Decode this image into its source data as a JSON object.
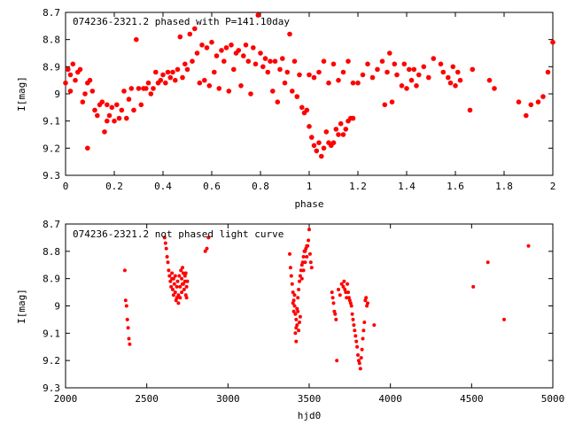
{
  "chart_data": [
    {
      "type": "scatter",
      "title": "074236-2321.2 phased with P=141.10day",
      "xlabel": "phase",
      "ylabel": "I[mag]",
      "xlim": [
        0,
        2
      ],
      "ylim": [
        8.7,
        9.3
      ],
      "y_inverted": true,
      "grid": false,
      "marker_color": "#ff0000",
      "marker": "filled-circle",
      "x_ticks": [
        "0",
        "0.2",
        "0.4",
        "0.6",
        "0.8",
        "1",
        "1.2",
        "1.4",
        "1.6",
        "1.8",
        "2"
      ],
      "y_ticks": [
        "8.7",
        "8.8",
        "8.9",
        "9",
        "9.1",
        "9.2",
        "9.3"
      ],
      "points": [
        [
          0.0,
          8.96
        ],
        [
          0.01,
          8.91
        ],
        [
          0.02,
          8.93
        ],
        [
          0.02,
          8.99
        ],
        [
          0.03,
          8.89
        ],
        [
          0.04,
          8.95
        ],
        [
          0.05,
          8.92
        ],
        [
          0.06,
          8.91
        ],
        [
          0.07,
          9.03
        ],
        [
          0.08,
          9.0
        ],
        [
          0.09,
          9.2
        ],
        [
          0.09,
          8.96
        ],
        [
          0.1,
          8.95
        ],
        [
          0.11,
          8.99
        ],
        [
          0.12,
          9.06
        ],
        [
          0.13,
          9.08
        ],
        [
          0.14,
          9.04
        ],
        [
          0.15,
          9.03
        ],
        [
          0.16,
          9.14
        ],
        [
          0.17,
          9.1
        ],
        [
          0.17,
          9.04
        ],
        [
          0.18,
          9.08
        ],
        [
          0.19,
          9.05
        ],
        [
          0.2,
          9.1
        ],
        [
          0.21,
          9.04
        ],
        [
          0.22,
          9.09
        ],
        [
          0.23,
          9.06
        ],
        [
          0.24,
          8.99
        ],
        [
          0.25,
          9.09
        ],
        [
          0.26,
          9.02
        ],
        [
          0.27,
          8.98
        ],
        [
          0.28,
          9.06
        ],
        [
          0.29,
          8.8
        ],
        [
          0.3,
          8.98
        ],
        [
          0.31,
          9.04
        ],
        [
          0.32,
          8.98
        ],
        [
          0.33,
          8.98
        ],
        [
          0.34,
          8.96
        ],
        [
          0.35,
          9.0
        ],
        [
          0.36,
          8.98
        ],
        [
          0.37,
          8.92
        ],
        [
          0.38,
          8.96
        ],
        [
          0.39,
          8.95
        ],
        [
          0.4,
          8.93
        ],
        [
          0.41,
          8.96
        ],
        [
          0.42,
          8.92
        ],
        [
          0.43,
          8.94
        ],
        [
          0.44,
          8.92
        ],
        [
          0.45,
          8.95
        ],
        [
          0.46,
          8.91
        ],
        [
          0.47,
          8.79
        ],
        [
          0.48,
          8.94
        ],
        [
          0.49,
          8.89
        ],
        [
          0.5,
          8.91
        ],
        [
          0.51,
          8.78
        ],
        [
          0.52,
          8.88
        ],
        [
          0.53,
          8.76
        ],
        [
          0.54,
          8.85
        ],
        [
          0.55,
          8.96
        ],
        [
          0.56,
          8.82
        ],
        [
          0.57,
          8.95
        ],
        [
          0.58,
          8.83
        ],
        [
          0.59,
          8.97
        ],
        [
          0.6,
          8.81
        ],
        [
          0.61,
          8.92
        ],
        [
          0.62,
          8.86
        ],
        [
          0.63,
          8.98
        ],
        [
          0.64,
          8.84
        ],
        [
          0.65,
          8.88
        ],
        [
          0.66,
          8.83
        ],
        [
          0.67,
          8.99
        ],
        [
          0.68,
          8.82
        ],
        [
          0.69,
          8.91
        ],
        [
          0.7,
          8.85
        ],
        [
          0.71,
          8.84
        ],
        [
          0.72,
          8.97
        ],
        [
          0.73,
          8.86
        ],
        [
          0.74,
          8.82
        ],
        [
          0.75,
          8.88
        ],
        [
          0.76,
          9.0
        ],
        [
          0.77,
          8.83
        ],
        [
          0.78,
          8.89
        ],
        [
          0.79,
          8.71
        ],
        [
          0.8,
          8.85
        ],
        [
          0.81,
          8.9
        ],
        [
          0.82,
          8.87
        ],
        [
          0.83,
          8.92
        ],
        [
          0.84,
          8.88
        ],
        [
          0.85,
          8.99
        ],
        [
          0.86,
          8.88
        ],
        [
          0.87,
          9.03
        ],
        [
          0.88,
          8.91
        ],
        [
          0.89,
          8.87
        ],
        [
          0.9,
          8.96
        ],
        [
          0.91,
          8.92
        ],
        [
          0.92,
          8.78
        ],
        [
          0.93,
          8.99
        ],
        [
          0.94,
          8.88
        ],
        [
          0.95,
          9.01
        ],
        [
          0.96,
          8.93
        ],
        [
          0.97,
          9.05
        ],
        [
          0.98,
          9.07
        ],
        [
          0.99,
          9.06
        ],
        [
          1.0,
          9.12
        ],
        [
          1.01,
          9.16
        ],
        [
          1.02,
          9.19
        ],
        [
          1.03,
          9.21
        ],
        [
          1.04,
          9.18
        ],
        [
          1.05,
          9.23
        ],
        [
          1.06,
          9.2
        ],
        [
          1.07,
          9.14
        ],
        [
          1.08,
          9.18
        ],
        [
          1.09,
          9.19
        ],
        [
          1.1,
          9.18
        ],
        [
          1.11,
          9.13
        ],
        [
          1.12,
          9.15
        ],
        [
          1.13,
          9.11
        ],
        [
          1.14,
          9.15
        ],
        [
          1.15,
          9.13
        ],
        [
          1.16,
          9.1
        ],
        [
          1.17,
          9.09
        ],
        [
          1.18,
          9.09
        ],
        [
          1.0,
          8.93
        ],
        [
          1.02,
          8.94
        ],
        [
          1.04,
          8.92
        ],
        [
          1.06,
          8.88
        ],
        [
          1.08,
          8.96
        ],
        [
          1.1,
          8.89
        ],
        [
          1.12,
          8.95
        ],
        [
          1.14,
          8.92
        ],
        [
          1.16,
          8.88
        ],
        [
          1.18,
          8.96
        ],
        [
          1.2,
          8.96
        ],
        [
          1.22,
          8.93
        ],
        [
          1.24,
          8.89
        ],
        [
          1.26,
          8.94
        ],
        [
          1.28,
          8.91
        ],
        [
          1.3,
          8.88
        ],
        [
          1.31,
          9.04
        ],
        [
          1.32,
          8.92
        ],
        [
          1.33,
          8.85
        ],
        [
          1.34,
          9.03
        ],
        [
          1.35,
          8.89
        ],
        [
          1.36,
          8.93
        ],
        [
          1.38,
          8.97
        ],
        [
          1.39,
          8.89
        ],
        [
          1.4,
          8.98
        ],
        [
          1.41,
          8.91
        ],
        [
          1.42,
          8.95
        ],
        [
          1.43,
          8.91
        ],
        [
          1.44,
          8.97
        ],
        [
          1.45,
          8.93
        ],
        [
          1.47,
          8.9
        ],
        [
          1.49,
          8.94
        ],
        [
          1.51,
          8.87
        ],
        [
          1.54,
          8.89
        ],
        [
          1.55,
          8.92
        ],
        [
          1.57,
          8.94
        ],
        [
          1.58,
          8.96
        ],
        [
          1.59,
          8.9
        ],
        [
          1.6,
          8.97
        ],
        [
          1.61,
          8.92
        ],
        [
          1.62,
          8.95
        ],
        [
          1.66,
          9.06
        ],
        [
          1.67,
          8.91
        ],
        [
          1.74,
          8.95
        ],
        [
          1.76,
          8.98
        ],
        [
          1.86,
          9.03
        ],
        [
          1.89,
          9.08
        ],
        [
          1.91,
          9.04
        ],
        [
          1.94,
          9.03
        ],
        [
          1.96,
          9.01
        ],
        [
          1.98,
          8.92
        ],
        [
          2.0,
          8.81
        ]
      ]
    },
    {
      "type": "scatter",
      "title": "074236-2321.2 not phased light curve",
      "xlabel": "hjd0",
      "ylabel": "I[mag]",
      "xlim": [
        2000,
        5000
      ],
      "ylim": [
        8.7,
        9.3
      ],
      "y_inverted": true,
      "grid": false,
      "marker_color": "#ff0000",
      "marker": "filled-circle",
      "x_ticks": [
        "2000",
        "2500",
        "3000",
        "3500",
        "4000",
        "4500",
        "5000"
      ],
      "y_ticks": [
        "8.7",
        "8.8",
        "8.9",
        "9",
        "9.1",
        "9.2",
        "9.3"
      ],
      "points": [
        [
          2365,
          8.87
        ],
        [
          2370,
          8.98
        ],
        [
          2375,
          9.0
        ],
        [
          2380,
          9.05
        ],
        [
          2385,
          9.08
        ],
        [
          2390,
          9.12
        ],
        [
          2395,
          9.14
        ],
        [
          2610,
          8.75
        ],
        [
          2615,
          8.77
        ],
        [
          2620,
          8.79
        ],
        [
          2625,
          8.82
        ],
        [
          2630,
          8.84
        ],
        [
          2635,
          8.87
        ],
        [
          2640,
          8.89
        ],
        [
          2645,
          8.91
        ],
        [
          2650,
          8.93
        ],
        [
          2655,
          8.9
        ],
        [
          2660,
          8.94
        ],
        [
          2665,
          8.96
        ],
        [
          2670,
          8.92
        ],
        [
          2675,
          8.95
        ],
        [
          2680,
          8.98
        ],
        [
          2685,
          8.93
        ],
        [
          2690,
          8.91
        ],
        [
          2695,
          8.96
        ],
        [
          2700,
          8.89
        ],
        [
          2705,
          8.93
        ],
        [
          2710,
          8.87
        ],
        [
          2715,
          8.9
        ],
        [
          2720,
          8.92
        ],
        [
          2725,
          8.88
        ],
        [
          2730,
          8.94
        ],
        [
          2735,
          8.91
        ],
        [
          2740,
          8.96
        ],
        [
          2745,
          8.93
        ],
        [
          2750,
          8.91
        ],
        [
          2655,
          8.88
        ],
        [
          2665,
          8.9
        ],
        [
          2675,
          8.89
        ],
        [
          2685,
          8.97
        ],
        [
          2695,
          8.99
        ],
        [
          2705,
          8.97
        ],
        [
          2715,
          8.95
        ],
        [
          2725,
          8.92
        ],
        [
          2735,
          8.89
        ],
        [
          2745,
          8.97
        ],
        [
          2720,
          8.86
        ],
        [
          2740,
          8.88
        ],
        [
          2860,
          8.8
        ],
        [
          2870,
          8.79
        ],
        [
          2880,
          8.75
        ],
        [
          3380,
          8.81
        ],
        [
          3385,
          8.86
        ],
        [
          3390,
          8.89
        ],
        [
          3395,
          8.92
        ],
        [
          3400,
          8.95
        ],
        [
          3405,
          8.98
        ],
        [
          3410,
          9.0
        ],
        [
          3415,
          9.03
        ],
        [
          3420,
          9.05
        ],
        [
          3425,
          9.07
        ],
        [
          3400,
          8.99
        ],
        [
          3405,
          9.02
        ],
        [
          3410,
          8.96
        ],
        [
          3415,
          9.1
        ],
        [
          3420,
          9.13
        ],
        [
          3425,
          9.01
        ],
        [
          3430,
          8.97
        ],
        [
          3435,
          8.94
        ],
        [
          3440,
          8.91
        ],
        [
          3445,
          8.89
        ],
        [
          3450,
          8.87
        ],
        [
          3455,
          8.85
        ],
        [
          3460,
          8.84
        ],
        [
          3465,
          8.82
        ],
        [
          3470,
          8.8
        ],
        [
          3475,
          8.8
        ],
        [
          3480,
          8.79
        ],
        [
          3485,
          8.78
        ],
        [
          3490,
          8.78
        ],
        [
          3495,
          8.76
        ],
        [
          3500,
          8.72
        ],
        [
          3505,
          8.81
        ],
        [
          3510,
          8.84
        ],
        [
          3515,
          8.86
        ],
        [
          3435,
          9.09
        ],
        [
          3440,
          9.06
        ],
        [
          3445,
          9.04
        ],
        [
          3420,
          9.08
        ],
        [
          3430,
          9.02
        ],
        [
          3455,
          8.9
        ],
        [
          3465,
          8.87
        ],
        [
          3475,
          8.84
        ],
        [
          3485,
          8.82
        ],
        [
          3640,
          8.95
        ],
        [
          3645,
          8.97
        ],
        [
          3650,
          8.99
        ],
        [
          3655,
          9.02
        ],
        [
          3660,
          9.03
        ],
        [
          3665,
          9.05
        ],
        [
          3670,
          9.2
        ],
        [
          3680,
          8.94
        ],
        [
          3690,
          8.96
        ],
        [
          3700,
          8.92
        ],
        [
          3710,
          8.93
        ],
        [
          3715,
          8.91
        ],
        [
          3720,
          8.94
        ],
        [
          3725,
          8.95
        ],
        [
          3730,
          8.97
        ],
        [
          3735,
          8.92
        ],
        [
          3740,
          8.95
        ],
        [
          3745,
          8.97
        ],
        [
          3750,
          8.98
        ],
        [
          3755,
          8.99
        ],
        [
          3760,
          9.0
        ],
        [
          3765,
          9.03
        ],
        [
          3770,
          9.05
        ],
        [
          3775,
          9.07
        ],
        [
          3780,
          9.09
        ],
        [
          3785,
          9.11
        ],
        [
          3790,
          9.13
        ],
        [
          3795,
          9.15
        ],
        [
          3800,
          9.18
        ],
        [
          3805,
          9.2
        ],
        [
          3810,
          9.21
        ],
        [
          3815,
          9.23
        ],
        [
          3820,
          9.19
        ],
        [
          3825,
          9.16
        ],
        [
          3830,
          9.12
        ],
        [
          3835,
          9.09
        ],
        [
          3840,
          9.06
        ],
        [
          3845,
          8.98
        ],
        [
          3850,
          8.97
        ],
        [
          3855,
          9.0
        ],
        [
          3860,
          8.99
        ],
        [
          3900,
          9.07
        ],
        [
          4510,
          8.93
        ],
        [
          4600,
          8.84
        ],
        [
          4700,
          9.05
        ],
        [
          4850,
          8.78
        ]
      ]
    }
  ]
}
